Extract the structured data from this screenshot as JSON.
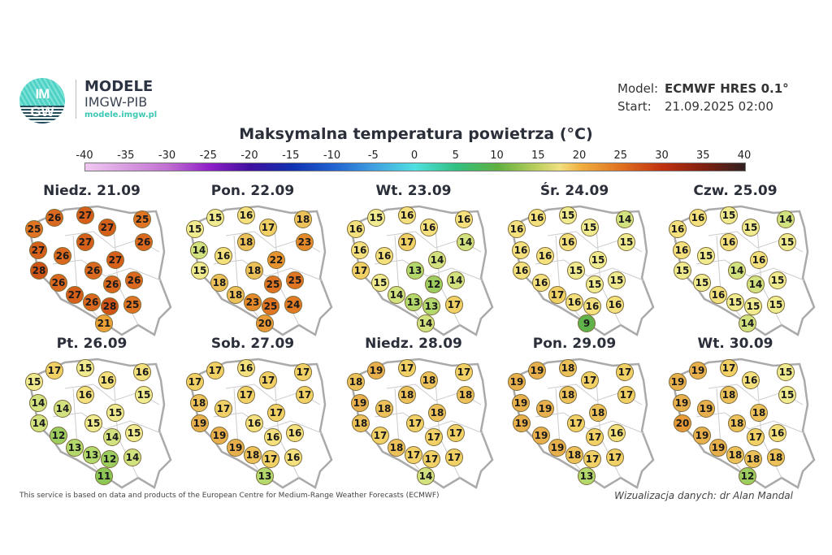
{
  "header": {
    "logo_text_top": "IM",
    "logo_text_bottom": "GW",
    "brand_title": "MODELE",
    "brand_subtitle": "IMGW-PIB",
    "brand_url": "modele.imgw.pl",
    "model_label": "Model:",
    "model_value": "ECMWF HRES 0.1°",
    "start_label": "Start:",
    "start_value": "21.09.2025 02:00"
  },
  "title": "Maksymalna temperatura powietrza (°C)",
  "colorbar": {
    "ticks": [
      "-40",
      "-35",
      "-30",
      "-25",
      "-20",
      "-15",
      "-10",
      "-5",
      "0",
      "5",
      "10",
      "15",
      "20",
      "25",
      "30",
      "35",
      "40"
    ],
    "range": [
      -40,
      40
    ]
  },
  "days": [
    {
      "label": "Niedz. 21.09",
      "values": [
        25,
        26,
        27,
        27,
        25,
        26,
        27,
        27,
        26,
        27,
        28,
        26,
        26,
        26,
        26,
        27,
        26,
        28,
        25,
        21
      ]
    },
    {
      "label": "Pon. 22.09",
      "values": [
        15,
        15,
        16,
        17,
        18,
        23,
        18,
        14,
        16,
        22,
        15,
        18,
        25,
        18,
        25,
        18,
        23,
        25,
        24,
        20
      ]
    },
    {
      "label": "Wt. 23.09",
      "values": [
        16,
        15,
        16,
        16,
        16,
        14,
        17,
        16,
        16,
        14,
        17,
        13,
        14,
        15,
        12,
        14,
        13,
        13,
        17,
        14
      ]
    },
    {
      "label": "Śr. 24.09",
      "values": [
        16,
        16,
        15,
        15,
        14,
        15,
        16,
        16,
        16,
        15,
        16,
        15,
        15,
        16,
        15,
        17,
        16,
        16,
        16,
        9
      ]
    },
    {
      "label": "Czw. 25.09",
      "values": [
        16,
        16,
        15,
        15,
        14,
        15,
        16,
        16,
        15,
        16,
        15,
        14,
        15,
        15,
        14,
        16,
        15,
        15,
        15,
        14
      ]
    },
    {
      "label": "Pt. 26.09",
      "values": [
        15,
        17,
        15,
        16,
        16,
        15,
        16,
        14,
        14,
        15,
        14,
        15,
        15,
        12,
        14,
        13,
        13,
        12,
        14,
        11
      ]
    },
    {
      "label": "Sob. 27.09",
      "values": [
        17,
        17,
        16,
        17,
        17,
        17,
        17,
        18,
        17,
        17,
        19,
        16,
        16,
        19,
        16,
        19,
        18,
        17,
        16,
        13
      ]
    },
    {
      "label": "Niedz. 28.09",
      "values": [
        18,
        19,
        17,
        18,
        17,
        18,
        18,
        19,
        18,
        18,
        18,
        17,
        17,
        17,
        17,
        18,
        17,
        17,
        17,
        14
      ]
    },
    {
      "label": "Pon. 29.09",
      "values": [
        19,
        19,
        18,
        17,
        17,
        17,
        18,
        19,
        19,
        18,
        19,
        17,
        16,
        19,
        17,
        19,
        18,
        17,
        17,
        13
      ]
    },
    {
      "label": "Wt. 30.09",
      "values": [
        19,
        19,
        17,
        16,
        15,
        15,
        18,
        19,
        19,
        18,
        20,
        18,
        16,
        19,
        17,
        19,
        18,
        18,
        18,
        12
      ]
    }
  ],
  "footer": {
    "attribution": "This service is based on data and products of the European Centre for Medium-Range Weather Forecasts (ECMWF)",
    "credit": "Wizualizacja danych: dr Alan Mandal"
  }
}
